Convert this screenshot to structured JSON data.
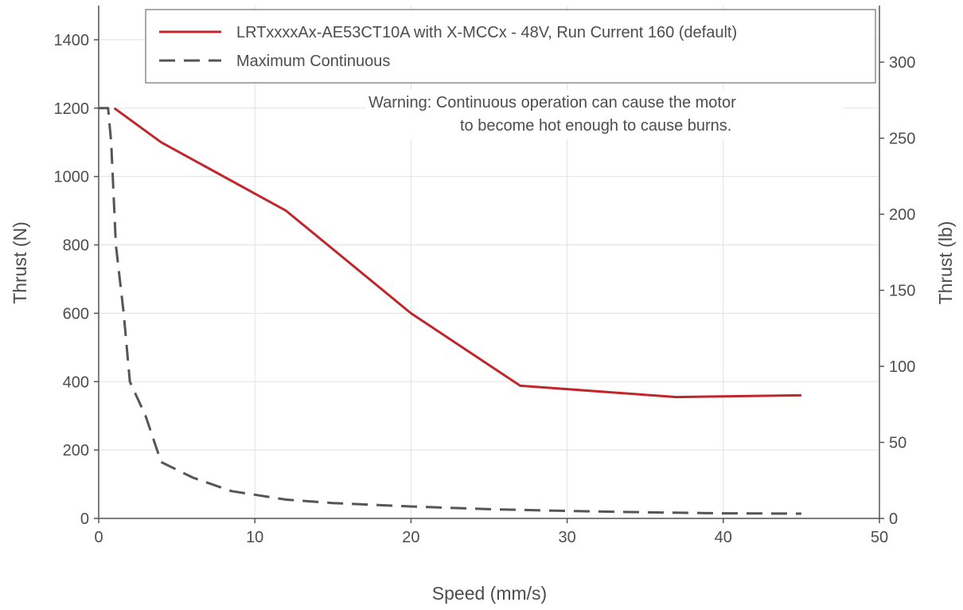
{
  "chart_data": {
    "type": "line",
    "xlabel": "Speed (mm/s)",
    "ylabel": "Thrust (N)",
    "ylabel_right": "Thrust (lb)",
    "xlim": [
      0,
      50
    ],
    "ylim": [
      0,
      1500
    ],
    "ylim_right": [
      0,
      337.2
    ],
    "x_ticks": [
      0,
      10,
      20,
      30,
      40,
      50
    ],
    "y_ticks": [
      0,
      200,
      400,
      600,
      800,
      1000,
      1200,
      1400
    ],
    "y_ticks_right": [
      0,
      50,
      100,
      150,
      200,
      250,
      300
    ],
    "grid": true,
    "legend_position": "top",
    "series": [
      {
        "name": "LRTxxxxAx-AE53CT10A with X-MCCx - 48V, Run Current 160 (default)",
        "style": "solid",
        "color": "#c0272d",
        "x": [
          1,
          4,
          12,
          20,
          27,
          37,
          45
        ],
        "y": [
          1200,
          1100,
          900,
          600,
          388,
          355,
          360
        ]
      },
      {
        "name": "Maximum Continuous",
        "style": "dashed",
        "color": "#555555",
        "x": [
          0,
          0.6,
          0.8,
          1.1,
          1.6,
          2.0,
          3.0,
          4.0,
          6.0,
          8.5,
          12.0,
          15.0,
          20.0,
          25.0,
          30.0,
          35.0,
          40.0,
          45.0
        ],
        "y": [
          1200,
          1200,
          1100,
          800,
          600,
          400,
          300,
          165,
          120,
          80,
          55,
          45,
          35,
          27,
          22,
          18,
          15,
          14
        ]
      }
    ],
    "annotations": [
      "Warning: Continuous operation can cause the motor",
      "to become hot enough to cause burns."
    ]
  }
}
